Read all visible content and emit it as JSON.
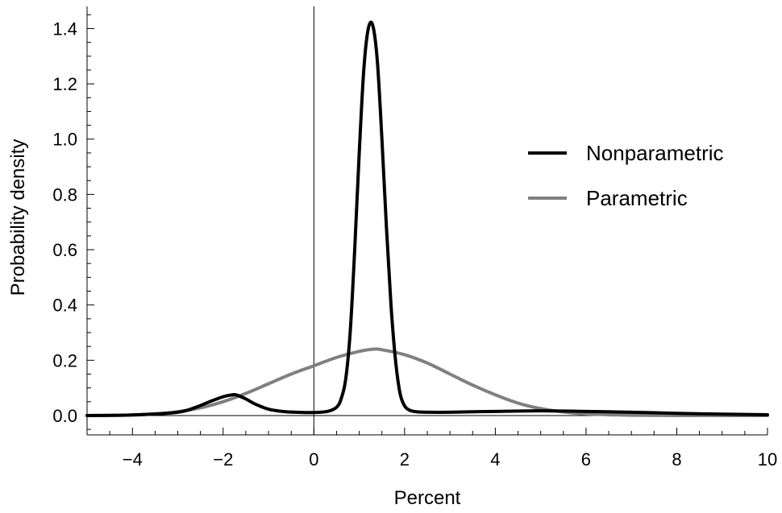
{
  "chart_data": {
    "type": "line",
    "title": "",
    "xlabel": "Percent",
    "ylabel": "Probability density",
    "xlim": [
      -5,
      10
    ],
    "ylim": [
      -0.07,
      1.48
    ],
    "x_ticks": [
      -4,
      -2,
      0,
      2,
      4,
      6,
      8,
      10
    ],
    "x_tick_labels": [
      "−4",
      "−2",
      "0",
      "2",
      "4",
      "6",
      "8",
      "10"
    ],
    "y_ticks": [
      0.0,
      0.2,
      0.4,
      0.6,
      0.8,
      1.0,
      1.2,
      1.4
    ],
    "y_tick_labels": [
      "0.0",
      "0.2",
      "0.4",
      "0.6",
      "0.8",
      "1.0",
      "1.2",
      "1.4"
    ],
    "grid": false,
    "legend_position": "right",
    "series": [
      {
        "name": "Nonparametric",
        "color": "#000000",
        "x": [
          -5,
          -4,
          -3,
          -2.6,
          -2.3,
          -2.0,
          -1.8,
          -1.7,
          -1.5,
          -1.3,
          -1.0,
          -0.7,
          -0.4,
          0,
          0.3,
          0.5,
          0.6,
          0.7,
          0.8,
          0.9,
          1.0,
          1.1,
          1.2,
          1.3,
          1.4,
          1.5,
          1.6,
          1.7,
          1.8,
          1.9,
          2.0,
          2.1,
          2.2,
          2.3,
          2.5,
          3.0,
          4.0,
          5.0,
          6.0,
          7.0,
          8.0,
          9.0,
          10.0
        ],
        "y": [
          0.0,
          0.002,
          0.012,
          0.03,
          0.05,
          0.068,
          0.075,
          0.074,
          0.06,
          0.042,
          0.023,
          0.015,
          0.012,
          0.011,
          0.015,
          0.03,
          0.06,
          0.13,
          0.3,
          0.6,
          0.95,
          1.25,
          1.4,
          1.41,
          1.28,
          1.0,
          0.68,
          0.4,
          0.2,
          0.08,
          0.035,
          0.02,
          0.015,
          0.013,
          0.012,
          0.012,
          0.015,
          0.017,
          0.015,
          0.012,
          0.008,
          0.005,
          0.003
        ]
      },
      {
        "name": "Parametric",
        "color": "#808080",
        "x": [
          -5,
          -4.5,
          -4,
          -3.5,
          -3,
          -2.5,
          -2,
          -1.5,
          -1,
          -0.5,
          0,
          0.5,
          1,
          1.3,
          1.5,
          2,
          2.5,
          3,
          3.5,
          4,
          4.5,
          5,
          5.5,
          6,
          6.5,
          7,
          8,
          9,
          10
        ],
        "y": [
          0.0,
          0.0005,
          0.002,
          0.006,
          0.014,
          0.028,
          0.05,
          0.08,
          0.115,
          0.15,
          0.18,
          0.21,
          0.232,
          0.24,
          0.238,
          0.22,
          0.19,
          0.15,
          0.11,
          0.075,
          0.045,
          0.025,
          0.013,
          0.006,
          0.003,
          0.001,
          0.0001,
          0.0,
          0.0
        ]
      }
    ]
  }
}
